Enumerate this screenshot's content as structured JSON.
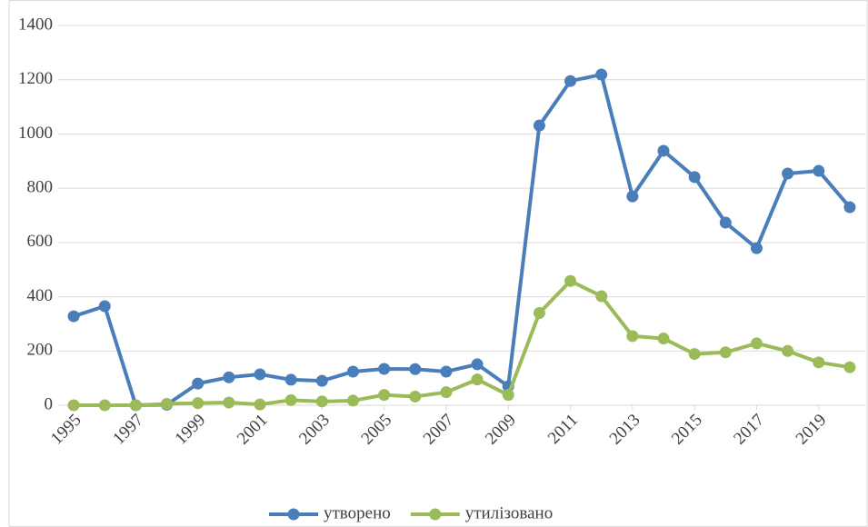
{
  "chart_data": {
    "type": "line",
    "x": [
      1995,
      1996,
      1997,
      1998,
      1999,
      2000,
      2001,
      2002,
      2003,
      2004,
      2005,
      2006,
      2007,
      2008,
      2009,
      2010,
      2011,
      2012,
      2013,
      2014,
      2015,
      2016,
      2017,
      2018,
      2019,
      2020
    ],
    "series": [
      {
        "name": "утворено",
        "color": "#4a7ebb",
        "values": [
          328,
          365,
          0,
          2,
          80,
          103,
          114,
          94,
          90,
          124,
          134,
          133,
          124,
          151,
          70,
          1031,
          1195,
          1219,
          770,
          938,
          841,
          673,
          579,
          854,
          864,
          730
        ]
      },
      {
        "name": "утилізовано",
        "color": "#9bbb59",
        "values": [
          0,
          0,
          0,
          5,
          8,
          10,
          3,
          19,
          14,
          17,
          38,
          32,
          48,
          95,
          38,
          340,
          458,
          402,
          255,
          246,
          189,
          195,
          228,
          200,
          158,
          140
        ]
      }
    ],
    "xlim": [
      1994.5,
      2020.5
    ],
    "xticks": [
      1995,
      1997,
      1999,
      2001,
      2003,
      2005,
      2007,
      2009,
      2011,
      2013,
      2015,
      2017,
      2019
    ],
    "ylim": [
      0,
      1400
    ],
    "yticks": [
      0,
      200,
      400,
      600,
      800,
      1000,
      1200,
      1400
    ],
    "grid": true,
    "legend": "bottom"
  }
}
